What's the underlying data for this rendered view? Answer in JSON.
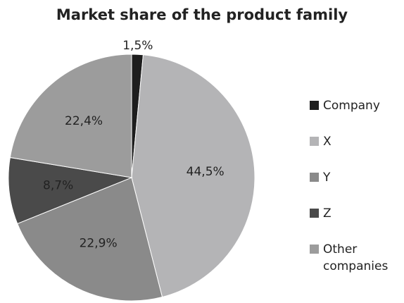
{
  "chart_data": {
    "type": "pie",
    "title": "Market share of the product family",
    "categories": [
      "Company",
      "X",
      "Y",
      "Z",
      "Other companies"
    ],
    "values": [
      1.5,
      44.5,
      22.9,
      8.7,
      22.4
    ],
    "value_labels": [
      "1,5%",
      "44,5%",
      "22,9%",
      "8,7%",
      "22,4%"
    ],
    "colors": [
      "#1e1e1e",
      "#b4b4b6",
      "#8a8a8a",
      "#4a4a4a",
      "#9c9c9c"
    ],
    "legend": "right"
  }
}
